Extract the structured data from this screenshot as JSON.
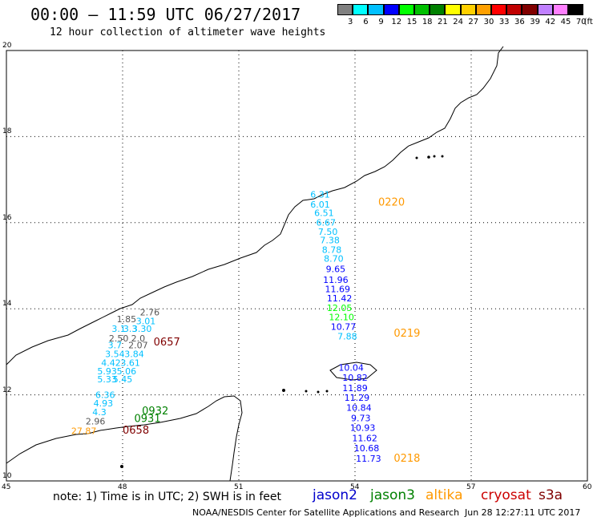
{
  "header": {
    "title": "00:00 – 11:59 UTC 06/27/2017",
    "subtitle": "12 hour collection of altimeter wave heights"
  },
  "legend": {
    "units": "(ft)",
    "bins": [
      {
        "label": "3",
        "color": "#808080"
      },
      {
        "label": "6",
        "color": "#00ffff"
      },
      {
        "label": "9",
        "color": "#00c0ff"
      },
      {
        "label": "12",
        "color": "#0000ff"
      },
      {
        "label": "15",
        "color": "#00ff00"
      },
      {
        "label": "18",
        "color": "#00c000"
      },
      {
        "label": "21",
        "color": "#008000"
      },
      {
        "label": "24",
        "color": "#ffff00"
      },
      {
        "label": "27",
        "color": "#ffd000"
      },
      {
        "label": "30",
        "color": "#ffa000"
      },
      {
        "label": "33",
        "color": "#ff0000"
      },
      {
        "label": "36",
        "color": "#c00000"
      },
      {
        "label": "39",
        "color": "#800000"
      },
      {
        "label": "42",
        "color": "#c080ff"
      },
      {
        "label": "45",
        "color": "#ff80ff"
      },
      {
        "label": "70",
        "color": "#000000"
      }
    ]
  },
  "axes": {
    "lon_ticks": [
      "45",
      "48",
      "51",
      "54",
      "57",
      "60"
    ],
    "lat_ticks": [
      "20",
      "18",
      "16",
      "14",
      "12",
      "10"
    ]
  },
  "map_data": {
    "lon_range": [
      45,
      60
    ],
    "lat_range": [
      10,
      20
    ],
    "grid": true,
    "west_track_labels": [
      {
        "value": "2.76",
        "lon": 48.7,
        "lat": 13.85,
        "color": "#555555"
      },
      {
        "value": "1.85",
        "lon": 48.1,
        "lat": 13.69,
        "color": "#555555"
      },
      {
        "value": "3.01",
        "lon": 48.6,
        "lat": 13.64,
        "color": "#00c0ff"
      },
      {
        "value": "3.1",
        "lon": 47.9,
        "lat": 13.46,
        "color": "#00c0ff"
      },
      {
        "value": "3.3",
        "lon": 48.2,
        "lat": 13.46,
        "color": "#00c0ff"
      },
      {
        "value": "3.30",
        "lon": 48.5,
        "lat": 13.46,
        "color": "#00c0ff"
      },
      {
        "value": "2.50",
        "lon": 47.9,
        "lat": 13.24,
        "color": "#555555"
      },
      {
        "value": "2.0",
        "lon": 48.4,
        "lat": 13.24,
        "color": "#555555"
      },
      {
        "value": "3.7",
        "lon": 47.8,
        "lat": 13.08,
        "color": "#00c0ff"
      },
      {
        "value": "2.07",
        "lon": 48.4,
        "lat": 13.08,
        "color": "#555555"
      },
      {
        "value": "3.54",
        "lon": 47.8,
        "lat": 12.88,
        "color": "#00c0ff"
      },
      {
        "value": "3.84",
        "lon": 48.3,
        "lat": 12.88,
        "color": "#00c0ff"
      },
      {
        "value": "4.42",
        "lon": 47.7,
        "lat": 12.67,
        "color": "#00c0ff"
      },
      {
        "value": "3.61",
        "lon": 48.2,
        "lat": 12.67,
        "color": "#00c0ff"
      },
      {
        "value": "5.93",
        "lon": 47.6,
        "lat": 12.48,
        "color": "#00c0ff"
      },
      {
        "value": "5.06",
        "lon": 48.1,
        "lat": 12.48,
        "color": "#00c0ff"
      },
      {
        "value": "5.33",
        "lon": 47.6,
        "lat": 12.29,
        "color": "#00c0ff"
      },
      {
        "value": "5.45",
        "lon": 48.0,
        "lat": 12.29,
        "color": "#00c0ff"
      },
      {
        "value": "6.36",
        "lon": 47.55,
        "lat": 11.93,
        "color": "#00c0ff"
      },
      {
        "value": "4.93",
        "lon": 47.5,
        "lat": 11.73,
        "color": "#00c0ff"
      },
      {
        "value": "4.3",
        "lon": 47.4,
        "lat": 11.53,
        "color": "#00c0ff"
      },
      {
        "value": "2.96",
        "lon": 47.3,
        "lat": 11.31,
        "color": "#555555"
      },
      {
        "value": "27.87",
        "lon": 47.0,
        "lat": 11.09,
        "color": "#ff9900"
      }
    ],
    "east_track_labels": [
      {
        "value": "6.31",
        "lon": 53.1,
        "lat": 16.58,
        "color": "#00c0ff"
      },
      {
        "value": "6.01",
        "lon": 53.1,
        "lat": 16.35,
        "color": "#00c0ff"
      },
      {
        "value": "6.51",
        "lon": 53.2,
        "lat": 16.15,
        "color": "#00c0ff"
      },
      {
        "value": "6.67",
        "lon": 53.25,
        "lat": 15.93,
        "color": "#00c0ff"
      },
      {
        "value": "7.50",
        "lon": 53.3,
        "lat": 15.72,
        "color": "#00c0ff"
      },
      {
        "value": "7.38",
        "lon": 53.35,
        "lat": 15.52,
        "color": "#00c0ff"
      },
      {
        "value": "8.78",
        "lon": 53.4,
        "lat": 15.3,
        "color": "#00c0ff"
      },
      {
        "value": "8.70",
        "lon": 53.45,
        "lat": 15.09,
        "color": "#00c0ff"
      },
      {
        "value": "9.65",
        "lon": 53.5,
        "lat": 14.85,
        "color": "#0000ff"
      },
      {
        "value": "11.96",
        "lon": 53.5,
        "lat": 14.6,
        "color": "#0000ff"
      },
      {
        "value": "11.69",
        "lon": 53.55,
        "lat": 14.39,
        "color": "#0000ff"
      },
      {
        "value": "11.42",
        "lon": 53.6,
        "lat": 14.17,
        "color": "#0000ff"
      },
      {
        "value": "12.05",
        "lon": 53.6,
        "lat": 13.95,
        "color": "#00ff00"
      },
      {
        "value": "12.10",
        "lon": 53.65,
        "lat": 13.73,
        "color": "#00ff00"
      },
      {
        "value": "10.77",
        "lon": 53.7,
        "lat": 13.51,
        "color": "#0000ff"
      },
      {
        "value": "7.88",
        "lon": 53.8,
        "lat": 13.29,
        "color": "#00c0ff"
      },
      {
        "value": "10.04",
        "lon": 53.9,
        "lat": 12.56,
        "color": "#0000ff"
      },
      {
        "value": "10.82",
        "lon": 54.0,
        "lat": 12.33,
        "color": "#0000ff"
      },
      {
        "value": "11.89",
        "lon": 54.0,
        "lat": 12.09,
        "color": "#0000ff"
      },
      {
        "value": "11.29",
        "lon": 54.05,
        "lat": 11.86,
        "color": "#0000ff"
      },
      {
        "value": "10.84",
        "lon": 54.1,
        "lat": 11.63,
        "color": "#0000ff"
      },
      {
        "value": "9.73",
        "lon": 54.15,
        "lat": 11.39,
        "color": "#0000ff"
      },
      {
        "value": "10.93",
        "lon": 54.2,
        "lat": 11.16,
        "color": "#0000ff"
      },
      {
        "value": "11.62",
        "lon": 54.25,
        "lat": 10.92,
        "color": "#0000ff"
      },
      {
        "value": "10.68",
        "lon": 54.3,
        "lat": 10.69,
        "color": "#0000ff"
      },
      {
        "value": "11.73",
        "lon": 54.35,
        "lat": 10.45,
        "color": "#0000ff"
      }
    ],
    "pass_times": [
      {
        "value": "0220",
        "lon": 54.6,
        "lat": 16.4,
        "color": "#ff9900"
      },
      {
        "value": "0657",
        "lon": 48.8,
        "lat": 13.15,
        "color": "#800000"
      },
      {
        "value": "0219",
        "lon": 55.0,
        "lat": 13.35,
        "color": "#ff9900"
      },
      {
        "value": "0932",
        "lon": 48.5,
        "lat": 11.55,
        "color": "#008000"
      },
      {
        "value": "0931",
        "lon": 48.3,
        "lat": 11.37,
        "color": "#008000"
      },
      {
        "value": "0658",
        "lon": 48.0,
        "lat": 11.1,
        "color": "#800000"
      },
      {
        "value": "0218",
        "lon": 55.0,
        "lat": 10.45,
        "color": "#ff9900"
      }
    ]
  },
  "footer": {
    "note": "note: 1) Time is in UTC; 2) SWH is in feet",
    "satellites": [
      {
        "name": "jason2",
        "color": "#0000cc"
      },
      {
        "name": "jason3",
        "color": "#008000"
      },
      {
        "name": "altika",
        "color": "#ff9900"
      },
      {
        "name": "cryosat",
        "color": "#cc0000"
      },
      {
        "name": "s3a",
        "color": "#800000"
      }
    ],
    "credit": "NOAA/NESDIS Center for Satellite Applications and Research",
    "created": "Jun 28 12:27:11 UTC 2017"
  }
}
